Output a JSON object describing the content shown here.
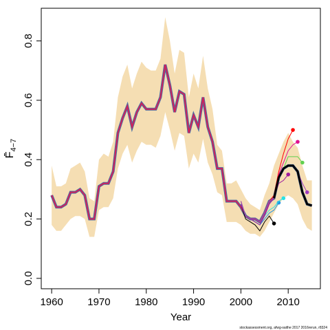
{
  "chart_data": {
    "type": "line",
    "xlabel": "Year",
    "ylabel": "F̄",
    "ylabel_subscript": "4−7",
    "footer": "stockassessment.org, afwg-saithe 2017 2016rerun, r8324",
    "xlim": [
      1957.8,
      2016.8
    ],
    "ylim": [
      -0.035,
      0.91
    ],
    "xticks": [
      1960,
      1970,
      1980,
      1990,
      2000,
      2010
    ],
    "yticks": [
      {
        "value": 0,
        "label": "0.0"
      },
      0.2,
      0.4,
      0.6,
      0.8
    ],
    "x": [
      1960,
      1961,
      1962,
      1963,
      1964,
      1965,
      1966,
      1967,
      1968,
      1969,
      1970,
      1971,
      1972,
      1973,
      1974,
      1975,
      1976,
      1977,
      1978,
      1979,
      1980,
      1981,
      1982,
      1983,
      1984,
      1985,
      1986,
      1987,
      1988,
      1989,
      1990,
      1991,
      1992,
      1993,
      1994,
      1995,
      1996,
      1997,
      1998,
      1999,
      2000,
      2001,
      2002,
      2003,
      2004,
      2005,
      2006,
      2007,
      2008,
      2009,
      2010,
      2011,
      2012,
      2013,
      2014,
      2015
    ],
    "band_color": "#f5deb3",
    "band_upper": [
      0.38,
      0.31,
      0.31,
      0.32,
      0.37,
      0.38,
      0.39,
      0.36,
      0.27,
      0.26,
      0.4,
      0.42,
      0.41,
      0.46,
      0.61,
      0.68,
      0.72,
      0.64,
      0.69,
      0.73,
      0.71,
      0.7,
      0.7,
      0.74,
      0.88,
      0.8,
      0.69,
      0.77,
      0.76,
      0.61,
      0.69,
      0.64,
      0.75,
      0.64,
      0.57,
      0.45,
      0.43,
      0.32,
      0.32,
      0.33,
      0.3,
      0.27,
      0.25,
      0.24,
      0.23,
      0.28,
      0.32,
      0.38,
      0.42,
      0.46,
      0.49,
      0.46,
      0.44,
      0.38,
      0.33,
      0.33
    ],
    "band_lower": [
      0.18,
      0.16,
      0.16,
      0.18,
      0.2,
      0.21,
      0.21,
      0.2,
      0.14,
      0.14,
      0.23,
      0.24,
      0.24,
      0.27,
      0.37,
      0.42,
      0.45,
      0.39,
      0.43,
      0.46,
      0.45,
      0.45,
      0.44,
      0.48,
      0.56,
      0.5,
      0.43,
      0.49,
      0.48,
      0.37,
      0.42,
      0.39,
      0.47,
      0.39,
      0.35,
      0.29,
      0.28,
      0.19,
      0.19,
      0.19,
      0.18,
      0.16,
      0.15,
      0.15,
      0.14,
      0.16,
      0.19,
      0.22,
      0.25,
      0.27,
      0.28,
      0.27,
      0.25,
      0.2,
      0.17,
      0.16
    ],
    "series": [
      {
        "color": "#000000",
        "values": [
          0.28,
          0.24,
          0.24,
          0.25,
          0.29,
          0.29,
          0.3,
          0.28,
          0.2,
          0.2,
          0.31,
          0.32,
          0.32,
          0.36,
          0.49,
          0.54,
          0.58,
          0.51,
          0.56,
          0.59,
          0.57,
          0.57,
          0.57,
          0.61,
          0.72,
          0.65,
          0.56,
          0.63,
          0.62,
          0.49,
          0.55,
          0.51,
          0.61,
          0.51,
          0.46,
          0.37,
          0.37,
          0.26,
          0.26,
          0.26,
          0.24,
          0.21,
          0.2,
          0.2,
          0.19,
          0.22,
          0.26,
          0.27,
          0.34,
          0.37,
          0.38,
          0.38,
          0.36,
          0.29,
          0.25,
          0.245
        ]
      }
    ],
    "retro": [
      {
        "color": "#000000",
        "x": [
          2000,
          2001,
          2002,
          2003,
          2004,
          2005,
          2006,
          2007
        ],
        "values": [
          0.25,
          0.2,
          0.19,
          0.18,
          0.16,
          0.19,
          0.21,
          0.185
        ]
      },
      {
        "color": "#2297e6",
        "x": [
          2000,
          2001,
          2002,
          2003,
          2004,
          2005,
          2006,
          2007,
          2008
        ],
        "values": [
          0.25,
          0.21,
          0.2,
          0.19,
          0.18,
          0.2,
          0.22,
          0.23,
          0.255
        ]
      },
      {
        "color": "#28e2e5",
        "x": [
          2000,
          2001,
          2002,
          2003,
          2004,
          2005,
          2006,
          2007,
          2008,
          2009
        ],
        "values": [
          0.25,
          0.21,
          0.2,
          0.19,
          0.18,
          0.21,
          0.23,
          0.24,
          0.26,
          0.27
        ]
      },
      {
        "color": "#9e1a9e",
        "x": [
          2000,
          2001,
          2002,
          2003,
          2004,
          2005,
          2006,
          2007,
          2008,
          2009,
          2010
        ],
        "values": [
          0.25,
          0.21,
          0.2,
          0.19,
          0.18,
          0.21,
          0.25,
          0.27,
          0.32,
          0.33,
          0.35
        ]
      },
      {
        "color": "#ff0000",
        "x": [
          2000,
          2001,
          2002,
          2003,
          2004,
          2005,
          2006,
          2007,
          2008,
          2009,
          2010,
          2011
        ],
        "values": [
          0.26,
          0.21,
          0.2,
          0.2,
          0.19,
          0.22,
          0.26,
          0.28,
          0.36,
          0.42,
          0.47,
          0.5
        ]
      },
      {
        "color": "#e0118f",
        "x": [
          2000,
          2001,
          2002,
          2003,
          2004,
          2005,
          2006,
          2007,
          2008,
          2009,
          2010,
          2011,
          2012
        ],
        "values": [
          0.26,
          0.21,
          0.2,
          0.2,
          0.19,
          0.22,
          0.26,
          0.27,
          0.35,
          0.39,
          0.43,
          0.45,
          0.46
        ]
      },
      {
        "color": "#61d04f",
        "x": [
          2000,
          2001,
          2002,
          2003,
          2004,
          2005,
          2006,
          2007,
          2008,
          2009,
          2010,
          2011,
          2012,
          2013
        ],
        "values": [
          0.26,
          0.21,
          0.2,
          0.2,
          0.19,
          0.22,
          0.26,
          0.27,
          0.34,
          0.37,
          0.41,
          0.41,
          0.41,
          0.39
        ]
      },
      {
        "color": "#9e3cc0",
        "x": [
          2000,
          2001,
          2002,
          2003,
          2004,
          2005,
          2006,
          2007,
          2008,
          2009,
          2010,
          2011,
          2012,
          2013,
          2014
        ],
        "values": [
          0.26,
          0.21,
          0.2,
          0.2,
          0.19,
          0.22,
          0.26,
          0.27,
          0.34,
          0.37,
          0.38,
          0.38,
          0.36,
          0.32,
          0.29
        ]
      }
    ]
  }
}
